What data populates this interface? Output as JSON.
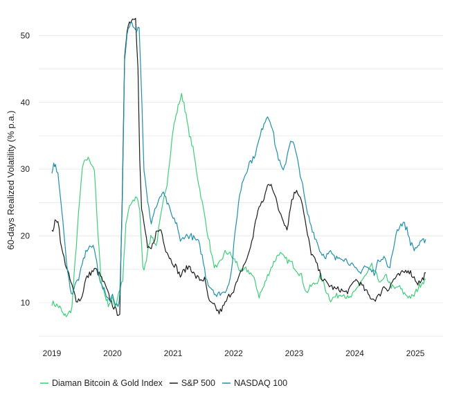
{
  "chart_data": {
    "type": "line",
    "title": "",
    "xlabel": "",
    "ylabel": "60-days Realized Volatility (% p.a.)",
    "xlim": [
      2019.0,
      2025.2
    ],
    "ylim": [
      4.5,
      54.5
    ],
    "x_ticks": [
      2019,
      2020,
      2021,
      2022,
      2023,
      2024,
      2025
    ],
    "x_tick_labels": [
      "2019",
      "2020",
      "2021",
      "2022",
      "2023",
      "2024",
      "2025"
    ],
    "y_ticks": [
      10,
      20,
      30,
      40,
      50
    ],
    "y_tick_labels": [
      "10",
      "20",
      "30",
      "40",
      "50"
    ],
    "grid": true,
    "legend_position": "bottom-left",
    "series": [
      {
        "name": "Diaman Bitcoin & Gold Index",
        "color": "#3ccf78",
        "x": [
          2019.0,
          2019.08,
          2019.13,
          2019.2,
          2019.27,
          2019.33,
          2019.42,
          2019.5,
          2019.56,
          2019.62,
          2019.7,
          2019.76,
          2019.82,
          2019.88,
          2019.93,
          2020.0,
          2020.05,
          2020.1,
          2020.17,
          2020.22,
          2020.28,
          2020.34,
          2020.4,
          2020.45,
          2020.5,
          2020.54,
          2020.6,
          2020.65,
          2020.72,
          2020.8,
          2020.9,
          2021.0,
          2021.05,
          2021.1,
          2021.14,
          2021.18,
          2021.25,
          2021.33,
          2021.42,
          2021.5,
          2021.58,
          2021.66,
          2021.72,
          2021.8,
          2021.86,
          2021.92,
          2022.0,
          2022.05,
          2022.12,
          2022.2,
          2022.28,
          2022.36,
          2022.42,
          2022.5,
          2022.58,
          2022.66,
          2022.75,
          2022.85,
          2022.95,
          2023.04,
          2023.12,
          2023.2,
          2023.28,
          2023.36,
          2023.44,
          2023.52,
          2023.6,
          2023.7,
          2023.8,
          2023.9,
          2024.0,
          2024.08,
          2024.18,
          2024.28,
          2024.36,
          2024.44,
          2024.52,
          2024.6,
          2024.66,
          2024.72,
          2024.8,
          2024.88,
          2024.96,
          2025.03,
          2025.1,
          2025.17
        ],
        "values": [
          10.0,
          9.6,
          9.3,
          8.0,
          8.3,
          9.2,
          21.0,
          30.0,
          31.5,
          31.5,
          30.0,
          20.0,
          13.0,
          11.0,
          9.8,
          10.5,
          9.5,
          11.5,
          13.5,
          21.5,
          24.5,
          25.0,
          26.0,
          24.0,
          15.0,
          15.5,
          19.0,
          20.0,
          18.5,
          23.0,
          28.0,
          36.0,
          38.0,
          40.0,
          41.0,
          40.0,
          36.0,
          33.0,
          28.0,
          24.0,
          20.0,
          16.0,
          15.0,
          16.5,
          17.5,
          17.5,
          16.5,
          16.0,
          14.5,
          15.0,
          14.5,
          13.0,
          11.0,
          12.5,
          14.5,
          16.0,
          17.5,
          16.5,
          16.0,
          15.0,
          14.0,
          11.5,
          12.5,
          13.0,
          14.0,
          12.0,
          10.5,
          11.0,
          11.5,
          10.5,
          11.5,
          13.0,
          14.0,
          15.5,
          14.0,
          13.0,
          14.0,
          12.5,
          12.0,
          12.5,
          11.5,
          11.0,
          10.8,
          12.0,
          13.0,
          13.5
        ]
      },
      {
        "name": "S&P 500",
        "color": "#1a1a1a",
        "x": [
          2019.0,
          2019.05,
          2019.1,
          2019.16,
          2019.22,
          2019.28,
          2019.33,
          2019.4,
          2019.48,
          2019.56,
          2019.64,
          2019.72,
          2019.8,
          2019.88,
          2019.96,
          2020.04,
          2020.08,
          2020.12,
          2020.16,
          2020.2,
          2020.24,
          2020.28,
          2020.33,
          2020.38,
          2020.42,
          2020.45,
          2020.48,
          2020.52,
          2020.58,
          2020.64,
          2020.72,
          2020.8,
          2020.88,
          2020.96,
          2021.04,
          2021.12,
          2021.2,
          2021.28,
          2021.36,
          2021.44,
          2021.52,
          2021.6,
          2021.68,
          2021.76,
          2021.84,
          2021.92,
          2022.0,
          2022.08,
          2022.16,
          2022.24,
          2022.32,
          2022.4,
          2022.48,
          2022.56,
          2022.62,
          2022.68,
          2022.74,
          2022.8,
          2022.88,
          2022.96,
          2023.04,
          2023.12,
          2023.2,
          2023.28,
          2023.36,
          2023.44,
          2023.52,
          2023.6,
          2023.68,
          2023.76,
          2023.84,
          2023.92,
          2024.0,
          2024.08,
          2024.16,
          2024.24,
          2024.32,
          2024.4,
          2024.48,
          2024.56,
          2024.64,
          2024.72,
          2024.8,
          2024.88,
          2024.96,
          2025.04,
          2025.1,
          2025.17
        ],
        "values": [
          20.5,
          22.0,
          22.5,
          18.0,
          16.0,
          14.0,
          12.5,
          10.5,
          10.5,
          13.5,
          14.5,
          15.0,
          14.0,
          12.5,
          10.5,
          9.0,
          8.5,
          8.5,
          25.0,
          47.0,
          51.0,
          52.0,
          52.5,
          53.0,
          45.0,
          31.0,
          24.0,
          22.0,
          18.0,
          18.0,
          20.5,
          21.0,
          18.0,
          16.5,
          15.5,
          14.0,
          15.0,
          15.5,
          14.0,
          13.5,
          13.5,
          10.0,
          9.5,
          8.5,
          9.5,
          11.0,
          12.0,
          13.5,
          15.5,
          17.0,
          20.0,
          24.0,
          25.0,
          27.5,
          28.0,
          26.0,
          24.0,
          23.0,
          21.0,
          25.5,
          27.0,
          25.5,
          21.0,
          17.5,
          16.0,
          14.0,
          13.0,
          12.5,
          12.0,
          12.0,
          11.5,
          12.0,
          13.5,
          13.0,
          12.0,
          11.0,
          10.5,
          11.0,
          12.5,
          12.0,
          13.5,
          14.0,
          14.5,
          15.0,
          14.0,
          13.0,
          13.2,
          14.5
        ]
      },
      {
        "name": "NASDAQ 100",
        "color": "#1f8fa8",
        "x": [
          2019.0,
          2019.03,
          2019.06,
          2019.1,
          2019.14,
          2019.18,
          2019.22,
          2019.26,
          2019.3,
          2019.34,
          2019.4,
          2019.46,
          2019.52,
          2019.58,
          2019.64,
          2019.7,
          2019.76,
          2019.82,
          2019.88,
          2019.94,
          2020.0,
          2020.05,
          2020.09,
          2020.12,
          2020.16,
          2020.2,
          2020.24,
          2020.28,
          2020.32,
          2020.36,
          2020.4,
          2020.44,
          2020.47,
          2020.52,
          2020.58,
          2020.64,
          2020.7,
          2020.76,
          2020.82,
          2020.88,
          2020.94,
          2021.0,
          2021.06,
          2021.12,
          2021.18,
          2021.24,
          2021.3,
          2021.36,
          2021.42,
          2021.48,
          2021.54,
          2021.6,
          2021.66,
          2021.72,
          2021.78,
          2021.84,
          2021.9,
          2021.96,
          2022.02,
          2022.08,
          2022.14,
          2022.2,
          2022.26,
          2022.32,
          2022.38,
          2022.44,
          2022.5,
          2022.56,
          2022.6,
          2022.64,
          2022.7,
          2022.76,
          2022.82,
          2022.88,
          2022.94,
          2023.0,
          2023.06,
          2023.12,
          2023.2,
          2023.28,
          2023.36,
          2023.44,
          2023.52,
          2023.6,
          2023.68,
          2023.76,
          2023.84,
          2023.92,
          2024.0,
          2024.08,
          2024.16,
          2024.24,
          2024.32,
          2024.4,
          2024.48,
          2024.56,
          2024.62,
          2024.68,
          2024.74,
          2024.8,
          2024.86,
          2024.92,
          2024.98,
          2025.04,
          2025.1,
          2025.17
        ],
        "values": [
          29.0,
          30.5,
          31.0,
          29.0,
          26.0,
          22.0,
          18.0,
          15.0,
          12.0,
          11.5,
          13.0,
          14.0,
          16.5,
          18.0,
          18.5,
          18.0,
          15.0,
          12.5,
          11.5,
          10.5,
          11.0,
          10.0,
          9.5,
          11.0,
          24.0,
          46.0,
          50.0,
          51.5,
          52.0,
          51.5,
          51.0,
          51.5,
          44.0,
          30.0,
          25.0,
          22.0,
          24.0,
          25.0,
          26.5,
          25.5,
          24.0,
          22.5,
          22.0,
          19.0,
          20.0,
          20.0,
          20.0,
          19.5,
          19.0,
          17.0,
          14.0,
          12.5,
          12.0,
          11.0,
          11.5,
          11.5,
          12.5,
          14.5,
          20.0,
          25.0,
          28.0,
          29.5,
          31.0,
          31.5,
          33.0,
          35.0,
          37.0,
          38.0,
          37.5,
          36.0,
          33.0,
          31.0,
          29.5,
          32.0,
          34.5,
          33.5,
          31.0,
          28.5,
          24.0,
          21.5,
          19.5,
          17.5,
          17.0,
          17.5,
          16.5,
          17.0,
          16.5,
          16.0,
          15.0,
          14.5,
          15.5,
          15.0,
          14.5,
          16.5,
          17.0,
          15.0,
          17.0,
          20.5,
          21.5,
          22.0,
          21.0,
          19.0,
          18.0,
          18.5,
          19.0,
          19.5
        ]
      }
    ]
  }
}
